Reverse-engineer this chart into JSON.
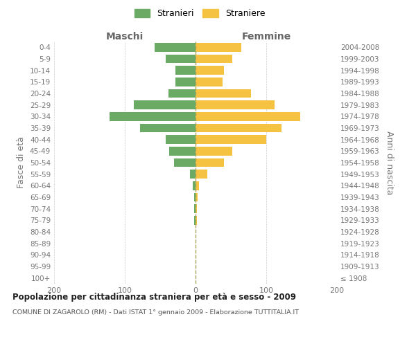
{
  "age_groups": [
    "100+",
    "95-99",
    "90-94",
    "85-89",
    "80-84",
    "75-79",
    "70-74",
    "65-69",
    "60-64",
    "55-59",
    "50-54",
    "45-49",
    "40-44",
    "35-39",
    "30-34",
    "25-29",
    "20-24",
    "15-19",
    "10-14",
    "5-9",
    "0-4"
  ],
  "birth_years": [
    "≤ 1908",
    "1909-1913",
    "1914-1918",
    "1919-1923",
    "1924-1928",
    "1929-1933",
    "1934-1938",
    "1939-1943",
    "1944-1948",
    "1949-1953",
    "1954-1958",
    "1959-1963",
    "1964-1968",
    "1969-1973",
    "1974-1978",
    "1979-1983",
    "1984-1988",
    "1989-1993",
    "1994-1998",
    "1999-2003",
    "2004-2008"
  ],
  "maschi": [
    0,
    0,
    0,
    0,
    0,
    2,
    2,
    2,
    4,
    8,
    30,
    37,
    42,
    78,
    122,
    87,
    38,
    28,
    28,
    42,
    58
  ],
  "femmine": [
    0,
    0,
    0,
    0,
    0,
    2,
    2,
    3,
    5,
    17,
    40,
    52,
    100,
    122,
    148,
    112,
    78,
    38,
    40,
    52,
    65
  ],
  "color_maschi": "#6aaa64",
  "color_femmine": "#f5c242",
  "background_color": "#ffffff",
  "grid_color": "#cccccc",
  "title_main": "Popolazione per cittadinanza straniera per età e sesso - 2009",
  "title_sub": "COMUNE DI ZAGAROLO (RM) - Dati ISTAT 1° gennaio 2009 - Elaborazione TUTTITALIA.IT",
  "label_maschi": "Maschi",
  "label_femmine": "Femmine",
  "ylabel_left": "Fasce di età",
  "ylabel_right": "Anni di nascita",
  "legend_stranieri": "Stranieri",
  "legend_straniere": "Straniere",
  "xlim": 200,
  "dashed_color": "#aaa855"
}
